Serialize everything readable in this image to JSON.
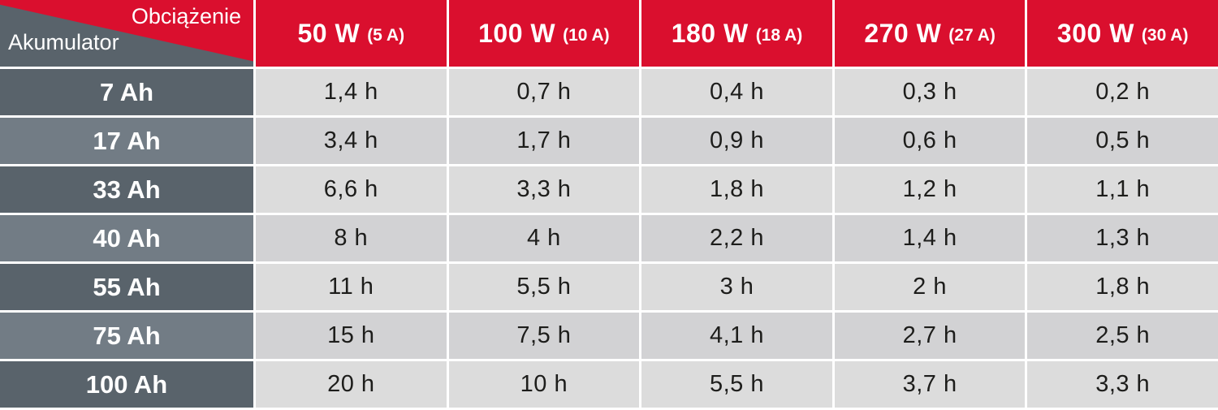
{
  "chart_data": {
    "type": "table",
    "corner": {
      "load_label": "Obciążenie",
      "battery_label": "Akumulator"
    },
    "columns": [
      {
        "power": "50 W",
        "amps": "(5 A)"
      },
      {
        "power": "100 W",
        "amps": "(10 A)"
      },
      {
        "power": "180 W",
        "amps": "(18 A)"
      },
      {
        "power": "270 W",
        "amps": "(27 A)"
      },
      {
        "power": "300 W",
        "amps": "(30 A)"
      }
    ],
    "rows": [
      {
        "battery": "7 Ah",
        "values": [
          "1,4 h",
          "0,7 h",
          "0,4 h",
          "0,3 h",
          "0,2 h"
        ]
      },
      {
        "battery": "17 Ah",
        "values": [
          "3,4 h",
          "1,7 h",
          "0,9 h",
          "0,6 h",
          "0,5 h"
        ]
      },
      {
        "battery": "33 Ah",
        "values": [
          "6,6 h",
          "3,3 h",
          "1,8 h",
          "1,2 h",
          "1,1 h"
        ]
      },
      {
        "battery": "40 Ah",
        "values": [
          "8 h",
          "4 h",
          "2,2 h",
          "1,4 h",
          "1,3 h"
        ]
      },
      {
        "battery": "55 Ah",
        "values": [
          "11 h",
          "5,5 h",
          "3 h",
          "2 h",
          "1,8 h"
        ]
      },
      {
        "battery": "75 Ah",
        "values": [
          "15 h",
          "7,5 h",
          "4,1 h",
          "2,7 h",
          "2,5 h"
        ]
      },
      {
        "battery": "100 Ah",
        "values": [
          "20 h",
          "10 h",
          "5,5 h",
          "3,7 h",
          "3,3 h"
        ]
      }
    ]
  },
  "colors": {
    "header_red": "#da0f2e",
    "row_dark": "#59636b",
    "row_light": "#727c85",
    "cell_light": "#dcdcdc",
    "cell_shade": "#d2d2d4",
    "text_dark": "#1d1d1b"
  }
}
